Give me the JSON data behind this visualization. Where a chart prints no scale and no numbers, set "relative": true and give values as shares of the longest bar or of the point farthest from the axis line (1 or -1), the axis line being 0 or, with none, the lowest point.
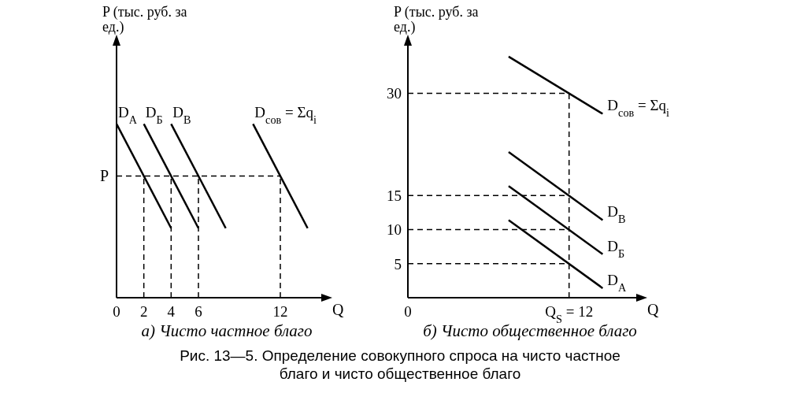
{
  "chart_data": [
    {
      "type": "line",
      "title": "a) Чисто частное благо",
      "xlabel": "Q",
      "ylabel": "P (тыс. руб. за ед.)",
      "relative": true,
      "xlim": [
        0,
        15
      ],
      "xticks": [
        0,
        2,
        4,
        6,
        12
      ],
      "marker": "none",
      "line_style": "solid",
      "annotations": [
        {
          "text": "P",
          "x": 0,
          "y": 0.7
        },
        "Рис. 13—5. Определение совокупного спроса на чисто частное благо и чисто общественное благо"
      ],
      "series": [
        {
          "name": "D$_{А}$",
          "color": "#000000",
          "x": [
            0,
            4
          ],
          "values": [
            1,
            0.4
          ]
        },
        {
          "name": "D$_{Б}$",
          "color": "#000000",
          "x": [
            2,
            6
          ],
          "values": [
            1,
            0.4
          ]
        },
        {
          "name": "D$_{В}$",
          "color": "#000000",
          "x": [
            4,
            8
          ],
          "values": [
            1,
            0.4
          ]
        },
        {
          "name": "D$_{сов}$ = Σq$_{i}$",
          "color": "#000000",
          "x": [
            10,
            14
          ],
          "values": [
            1,
            0.4
          ]
        },
        {
          "color": "#000000",
          "line_style": "dashed",
          "x": [
            0,
            12
          ],
          "values": [
            0.7,
            0.7
          ]
        },
        {
          "color": "#000000",
          "line_style": "dashed",
          "x": [
            2,
            2
          ],
          "values": [
            0,
            0.7
          ]
        },
        {
          "color": "#000000",
          "line_style": "dashed",
          "x": [
            4,
            4
          ],
          "values": [
            0,
            0.7
          ]
        },
        {
          "color": "#000000",
          "line_style": "dashed",
          "x": [
            6,
            6
          ],
          "values": [
            0,
            0.7
          ]
        },
        {
          "color": "#000000",
          "line_style": "dashed",
          "x": [
            12,
            12
          ],
          "values": [
            0,
            0.7
          ]
        }
      ]
    },
    {
      "type": "line",
      "title": "б) Чисто общественное благо",
      "xlabel": "Q",
      "ylabel": "P (тыс. руб. за ед.)",
      "xlim": [
        0,
        17
      ],
      "xticks": [
        0,
        {
          "value": 12,
          "label": "Q$_{S}$ = 12"
        }
      ],
      "ylim": [
        0,
        37
      ],
      "yticks": [
        5,
        10,
        15,
        30
      ],
      "marker": "none",
      "line_style": "solid",
      "series": [
        {
          "name": "D$_{сов}$ = Σq$_{i}$",
          "color": "#000000",
          "x": [
            7.5,
            14.5
          ],
          "values": [
            35.4,
            27
          ]
        },
        {
          "name": "D$_{В}$",
          "color": "#000000",
          "x": [
            7.5,
            14.5
          ],
          "values": [
            21.4,
            11.4
          ]
        },
        {
          "name": "D$_{Б}$",
          "color": "#000000",
          "x": [
            7.5,
            14.5
          ],
          "values": [
            16.4,
            6.4
          ]
        },
        {
          "name": "D$_{А}$",
          "color": "#000000",
          "x": [
            7.5,
            14.5
          ],
          "values": [
            11.4,
            1.4
          ]
        },
        {
          "color": "#000000",
          "line_style": "dashed",
          "x": [
            0,
            12
          ],
          "values": [
            30,
            30
          ]
        },
        {
          "color": "#000000",
          "line_style": "dashed",
          "x": [
            0,
            12
          ],
          "values": [
            15,
            15
          ]
        },
        {
          "color": "#000000",
          "line_style": "dashed",
          "x": [
            0,
            12
          ],
          "values": [
            10,
            10
          ]
        },
        {
          "color": "#000000",
          "line_style": "dashed",
          "x": [
            0,
            12
          ],
          "values": [
            5,
            5
          ]
        },
        {
          "color": "#000000",
          "line_style": "dashed",
          "x": [
            12,
            12
          ],
          "values": [
            0,
            30
          ]
        }
      ]
    }
  ]
}
